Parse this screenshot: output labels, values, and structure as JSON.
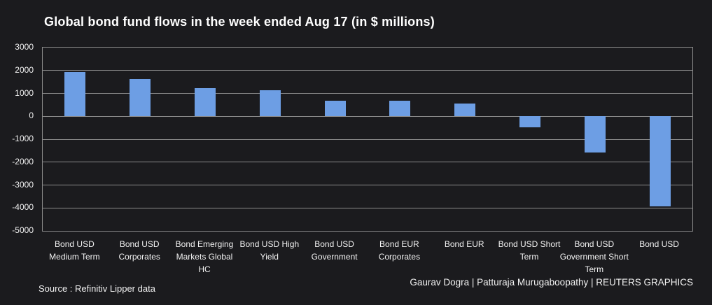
{
  "title": "Global bond fund flows in the week ended Aug 17 (in $ millions)",
  "source": "Source : Refinitiv Lipper data",
  "credit": "Gaurav Dogra | Patturaja Murugaboopathy | REUTERS GRAPHICS",
  "colors": {
    "background": "#1b1b1e",
    "bar": "#6d9ee4",
    "grid": "#8c8c8c",
    "text": "#f2f2f2",
    "title_text": "#ffffff"
  },
  "chart_data": {
    "type": "bar",
    "title": "Global bond fund flows in the week ended Aug 17 (in $ millions)",
    "categories": [
      "Bond USD Medium Term",
      "Bond USD Corporates",
      "Bond Emerging Markets Global HC",
      "Bond USD High Yield",
      "Bond USD Government",
      "Bond EUR Corporates",
      "Bond EUR",
      "Bond USD Short Term",
      "Bond USD Government Short Term",
      "Bond USD"
    ],
    "values": [
      1930,
      1620,
      1220,
      1150,
      690,
      690,
      550,
      -470,
      -1580,
      -3930
    ],
    "xlabel": "",
    "ylabel": "",
    "ylim": [
      -5000,
      3000
    ],
    "ytick_step": 1000,
    "yticks": [
      3000,
      2000,
      1000,
      0,
      -1000,
      -2000,
      -3000,
      -4000,
      -5000
    ],
    "grid": true,
    "legend": false
  }
}
